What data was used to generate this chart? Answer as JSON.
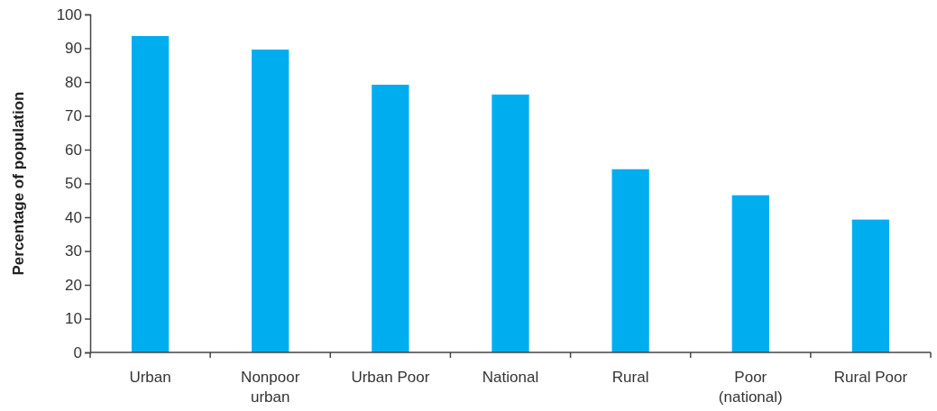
{
  "chart_data": {
    "type": "bar",
    "ylabel": "Percentage of population",
    "categories": [
      "Urban",
      "Nonpoor urban",
      "Urban Poor",
      "National",
      "Rural",
      "Poor (national)",
      "Rural Poor"
    ],
    "values": [
      93.6,
      89.6,
      79.2,
      76.3,
      54.2,
      46.5,
      39.3
    ],
    "color": "#00aeef",
    "ylim": [
      0,
      100
    ],
    "yticks": [
      0,
      10,
      20,
      30,
      40,
      50,
      60,
      70,
      80,
      90,
      100
    ],
    "grid": false
  }
}
